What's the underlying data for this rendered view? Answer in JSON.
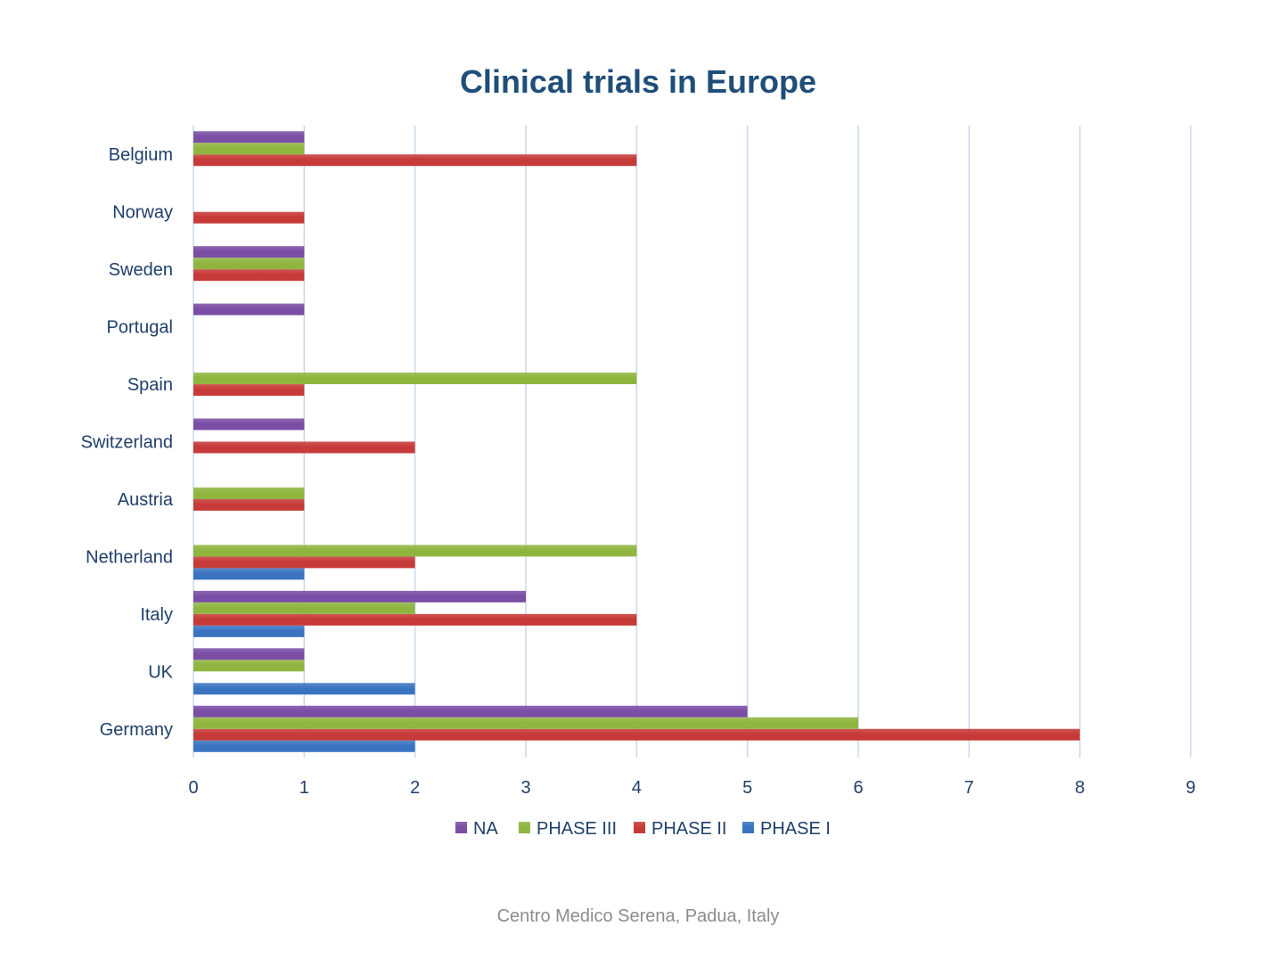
{
  "chart_data": {
    "type": "bar",
    "orientation": "horizontal",
    "title": "Clinical trials in Europe",
    "xlabel": "",
    "ylabel": "",
    "xlim": [
      0,
      9
    ],
    "x_ticks": [
      0,
      1,
      2,
      3,
      4,
      5,
      6,
      7,
      8,
      9
    ],
    "grid": "vertical",
    "legend_position": "bottom",
    "categories": [
      "Germany",
      "UK",
      "Italy",
      "Netherland",
      "Austria",
      "Switzerland",
      "Spain",
      "Portugal",
      "Sweden",
      "Norway",
      "Belgium"
    ],
    "series": [
      {
        "name": "PHASE I",
        "color": "#3a74c1",
        "values": [
          2,
          2,
          1,
          1,
          0,
          0,
          0,
          0,
          0,
          0,
          0
        ]
      },
      {
        "name": "PHASE II",
        "color": "#c63a37",
        "values": [
          8,
          0,
          4,
          2,
          1,
          2,
          1,
          0,
          1,
          1,
          4
        ]
      },
      {
        "name": "PHASE III",
        "color": "#8fb53f",
        "values": [
          6,
          1,
          2,
          4,
          1,
          0,
          4,
          0,
          1,
          0,
          1
        ]
      },
      {
        "name": "NA",
        "color": "#7a4ea5",
        "values": [
          5,
          1,
          3,
          0,
          0,
          1,
          0,
          1,
          1,
          0,
          1
        ]
      }
    ],
    "legend_order": [
      "NA",
      "PHASE III",
      "PHASE II",
      "PHASE I"
    ]
  },
  "footer": "Centro Medico Serena, Padua, Italy",
  "colors": {
    "title": "#1f4e79",
    "axis_text": "#1f3f6a",
    "grid": "#c9d9ec",
    "footer": "#8c8c8c"
  }
}
